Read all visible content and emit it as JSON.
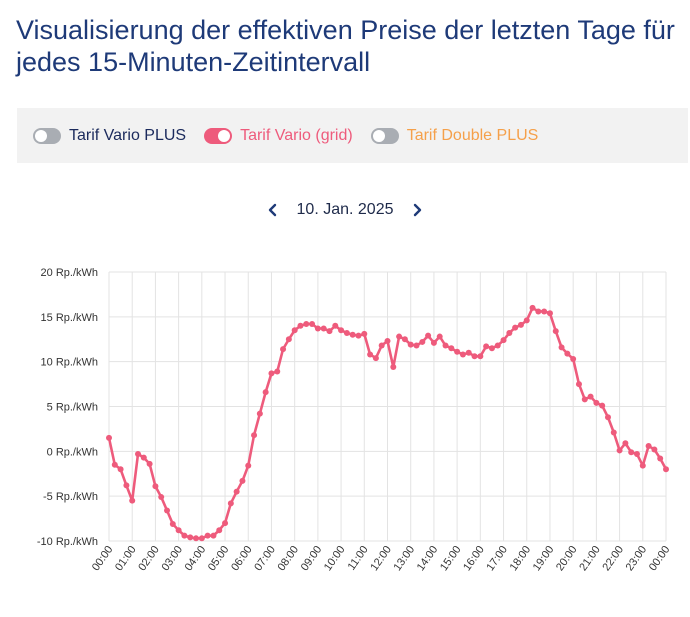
{
  "page": {
    "title": "Visualisierung der effektiven Preise der letzten Tage für jedes 15-Minuten-Zeitintervall"
  },
  "legend": {
    "items": [
      {
        "label": "Tarif Vario PLUS",
        "active": false,
        "color": "#1b2a5c"
      },
      {
        "label": "Tarif Vario (grid)",
        "active": true,
        "color": "#ee5b7c"
      },
      {
        "label": "Tarif Double PLUS",
        "active": false,
        "color": "#f5a04a"
      }
    ]
  },
  "date_nav": {
    "date": "10. Jan. 2025",
    "prev_icon": "chevron-left-icon",
    "next_icon": "chevron-right-icon"
  },
  "colors": {
    "accent": "#ee5b7c",
    "grid": "#e3e3e3",
    "title": "#1e3a78"
  },
  "chart_data": {
    "type": "line",
    "title": "",
    "xlabel": "",
    "ylabel": "",
    "ylim": [
      -10,
      20
    ],
    "y_ticks": [
      {
        "value": 20,
        "label": "20 Rp./kWh"
      },
      {
        "value": 15,
        "label": "15 Rp./kWh"
      },
      {
        "value": 10,
        "label": "10 Rp./kWh"
      },
      {
        "value": 5,
        "label": "5 Rp./kWh"
      },
      {
        "value": 0,
        "label": "0 Rp./kWh"
      },
      {
        "value": -5,
        "label": "-5 Rp./kWh"
      },
      {
        "value": -10,
        "label": "-10 Rp./kWh"
      }
    ],
    "x_ticks": [
      "00:00",
      "01:00",
      "02:00",
      "03:00",
      "04:00",
      "05:00",
      "06:00",
      "07:00",
      "08:00",
      "09:00",
      "10:00",
      "11:00",
      "12:00",
      "13:00",
      "14:00",
      "15:00",
      "16:00",
      "17:00",
      "18:00",
      "19:00",
      "20:00",
      "21:00",
      "22:00",
      "23:00",
      "00:00"
    ],
    "series": [
      {
        "name": "Tarif Vario (grid)",
        "color": "#ee5b7c",
        "interval_minutes": 15,
        "values": [
          1.5,
          -1.5,
          -2.0,
          -3.8,
          -5.5,
          -0.3,
          -0.7,
          -1.4,
          -3.9,
          -5.1,
          -6.6,
          -8.1,
          -8.8,
          -9.4,
          -9.6,
          -9.7,
          -9.7,
          -9.4,
          -9.4,
          -8.8,
          -8.0,
          -5.8,
          -4.5,
          -3.3,
          -1.6,
          1.8,
          4.2,
          6.6,
          8.7,
          8.9,
          11.4,
          12.5,
          13.5,
          14.0,
          14.2,
          14.2,
          13.7,
          13.7,
          13.4,
          14.0,
          13.5,
          13.2,
          13.0,
          12.9,
          13.1,
          10.8,
          10.4,
          11.8,
          12.3,
          9.4,
          12.8,
          12.5,
          11.9,
          11.8,
          12.2,
          12.9,
          12.1,
          12.8,
          11.8,
          11.5,
          11.1,
          10.8,
          11.0,
          10.6,
          10.6,
          11.7,
          11.5,
          11.8,
          12.4,
          13.2,
          13.8,
          14.1,
          14.6,
          16.0,
          15.6,
          15.6,
          15.4,
          13.4,
          11.6,
          10.9,
          10.3,
          7.5,
          5.8,
          6.1,
          5.4,
          5.1,
          3.8,
          2.1,
          0.1,
          0.9,
          -0.1,
          -0.3,
          -1.6,
          0.6,
          0.2,
          -0.8,
          -2.0
        ]
      }
    ]
  }
}
